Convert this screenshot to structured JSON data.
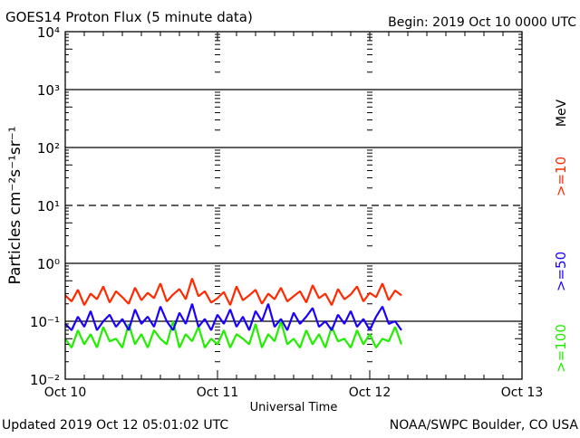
{
  "chart_data": {
    "type": "line",
    "title": "GOES14 Proton Flux (5 minute data)",
    "begin_label": "Begin: 2019 Oct 10 0000 UTC",
    "xlabel": "Universal Time",
    "ylabel": "Particles cm⁻²s⁻¹sr⁻¹",
    "yscale": "log",
    "ylim": [
      0.01,
      10000
    ],
    "y_ticks": [
      {
        "value": 10000,
        "label": "10⁴"
      },
      {
        "value": 1000,
        "label": "10³"
      },
      {
        "value": 100,
        "label": "10²"
      },
      {
        "value": 10,
        "label": "10¹"
      },
      {
        "value": 1,
        "label": "10⁰"
      },
      {
        "value": 0.1,
        "label": "10⁻¹"
      },
      {
        "value": 0.01,
        "label": "10⁻²"
      }
    ],
    "x_range_hours": [
      0,
      72
    ],
    "x_ticks": [
      {
        "hour": 0,
        "label": "Oct 10"
      },
      {
        "hour": 24,
        "label": "Oct 11"
      },
      {
        "hour": 48,
        "label": "Oct 12"
      },
      {
        "hour": 72,
        "label": "Oct 13"
      }
    ],
    "threshold_line": {
      "value": 10,
      "style": "dashed"
    },
    "units_label": "MeV",
    "x_hours_step": 1,
    "series": [
      {
        "name": ">=10",
        "color": "#ff2a00",
        "values": [
          0.28,
          0.22,
          0.35,
          0.19,
          0.3,
          0.24,
          0.4,
          0.21,
          0.33,
          0.26,
          0.2,
          0.38,
          0.23,
          0.31,
          0.25,
          0.45,
          0.22,
          0.29,
          0.36,
          0.24,
          0.55,
          0.27,
          0.33,
          0.21,
          0.25,
          0.32,
          0.19,
          0.4,
          0.23,
          0.28,
          0.35,
          0.2,
          0.3,
          0.24,
          0.38,
          0.22,
          0.27,
          0.33,
          0.21,
          0.42,
          0.25,
          0.3,
          0.19,
          0.36,
          0.24,
          0.29,
          0.4,
          0.22,
          0.31,
          0.26,
          0.45,
          0.23,
          0.34,
          0.28
        ]
      },
      {
        "name": ">=50",
        "color": "#1a00ff",
        "values": [
          0.09,
          0.07,
          0.12,
          0.08,
          0.15,
          0.07,
          0.1,
          0.13,
          0.08,
          0.11,
          0.07,
          0.16,
          0.09,
          0.12,
          0.08,
          0.18,
          0.1,
          0.07,
          0.14,
          0.09,
          0.2,
          0.08,
          0.11,
          0.07,
          0.13,
          0.09,
          0.16,
          0.08,
          0.12,
          0.07,
          0.15,
          0.1,
          0.2,
          0.08,
          0.11,
          0.07,
          0.14,
          0.09,
          0.12,
          0.17,
          0.08,
          0.1,
          0.07,
          0.13,
          0.09,
          0.15,
          0.08,
          0.11,
          0.07,
          0.12,
          0.18,
          0.09,
          0.1,
          0.07
        ]
      },
      {
        "name": ">=100",
        "color": "#22ee00",
        "values": [
          0.05,
          0.035,
          0.07,
          0.04,
          0.06,
          0.035,
          0.08,
          0.045,
          0.05,
          0.035,
          0.09,
          0.04,
          0.06,
          0.035,
          0.07,
          0.05,
          0.04,
          0.1,
          0.035,
          0.06,
          0.045,
          0.08,
          0.035,
          0.05,
          0.04,
          0.07,
          0.035,
          0.06,
          0.05,
          0.04,
          0.09,
          0.035,
          0.06,
          0.045,
          0.1,
          0.04,
          0.05,
          0.035,
          0.07,
          0.04,
          0.06,
          0.035,
          0.08,
          0.045,
          0.05,
          0.035,
          0.07,
          0.04,
          0.06,
          0.035,
          0.05,
          0.045,
          0.08,
          0.04
        ]
      }
    ]
  },
  "footer": {
    "updated": "Updated 2019 Oct 12 05:01:02 UTC",
    "source": "NOAA/SWPC Boulder, CO USA"
  }
}
